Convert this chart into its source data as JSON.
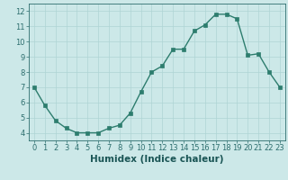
{
  "x": [
    0,
    1,
    2,
    3,
    4,
    5,
    6,
    7,
    8,
    9,
    10,
    11,
    12,
    13,
    14,
    15,
    16,
    17,
    18,
    19,
    20,
    21,
    22,
    23
  ],
  "y": [
    7.0,
    5.8,
    4.8,
    4.3,
    4.0,
    4.0,
    4.0,
    4.3,
    4.5,
    5.3,
    6.7,
    8.0,
    8.4,
    9.5,
    9.5,
    10.7,
    11.1,
    11.8,
    11.8,
    11.5,
    9.1,
    9.2,
    8.0,
    7.0
  ],
  "line_color": "#2d7d6e",
  "marker": "s",
  "marker_size": 2.5,
  "bg_color": "#cce8e8",
  "grid_color": "#aed4d4",
  "xlabel": "Humidex (Indice chaleur)",
  "xlim": [
    -0.5,
    23.5
  ],
  "ylim": [
    3.5,
    12.5
  ],
  "yticks": [
    4,
    5,
    6,
    7,
    8,
    9,
    10,
    11,
    12
  ],
  "xticks": [
    0,
    1,
    2,
    3,
    4,
    5,
    6,
    7,
    8,
    9,
    10,
    11,
    12,
    13,
    14,
    15,
    16,
    17,
    18,
    19,
    20,
    21,
    22,
    23
  ],
  "tick_color": "#2d6e6e",
  "label_color": "#1a5555",
  "tick_fontsize": 6.0,
  "xlabel_fontsize": 7.5,
  "line_width": 1.0
}
